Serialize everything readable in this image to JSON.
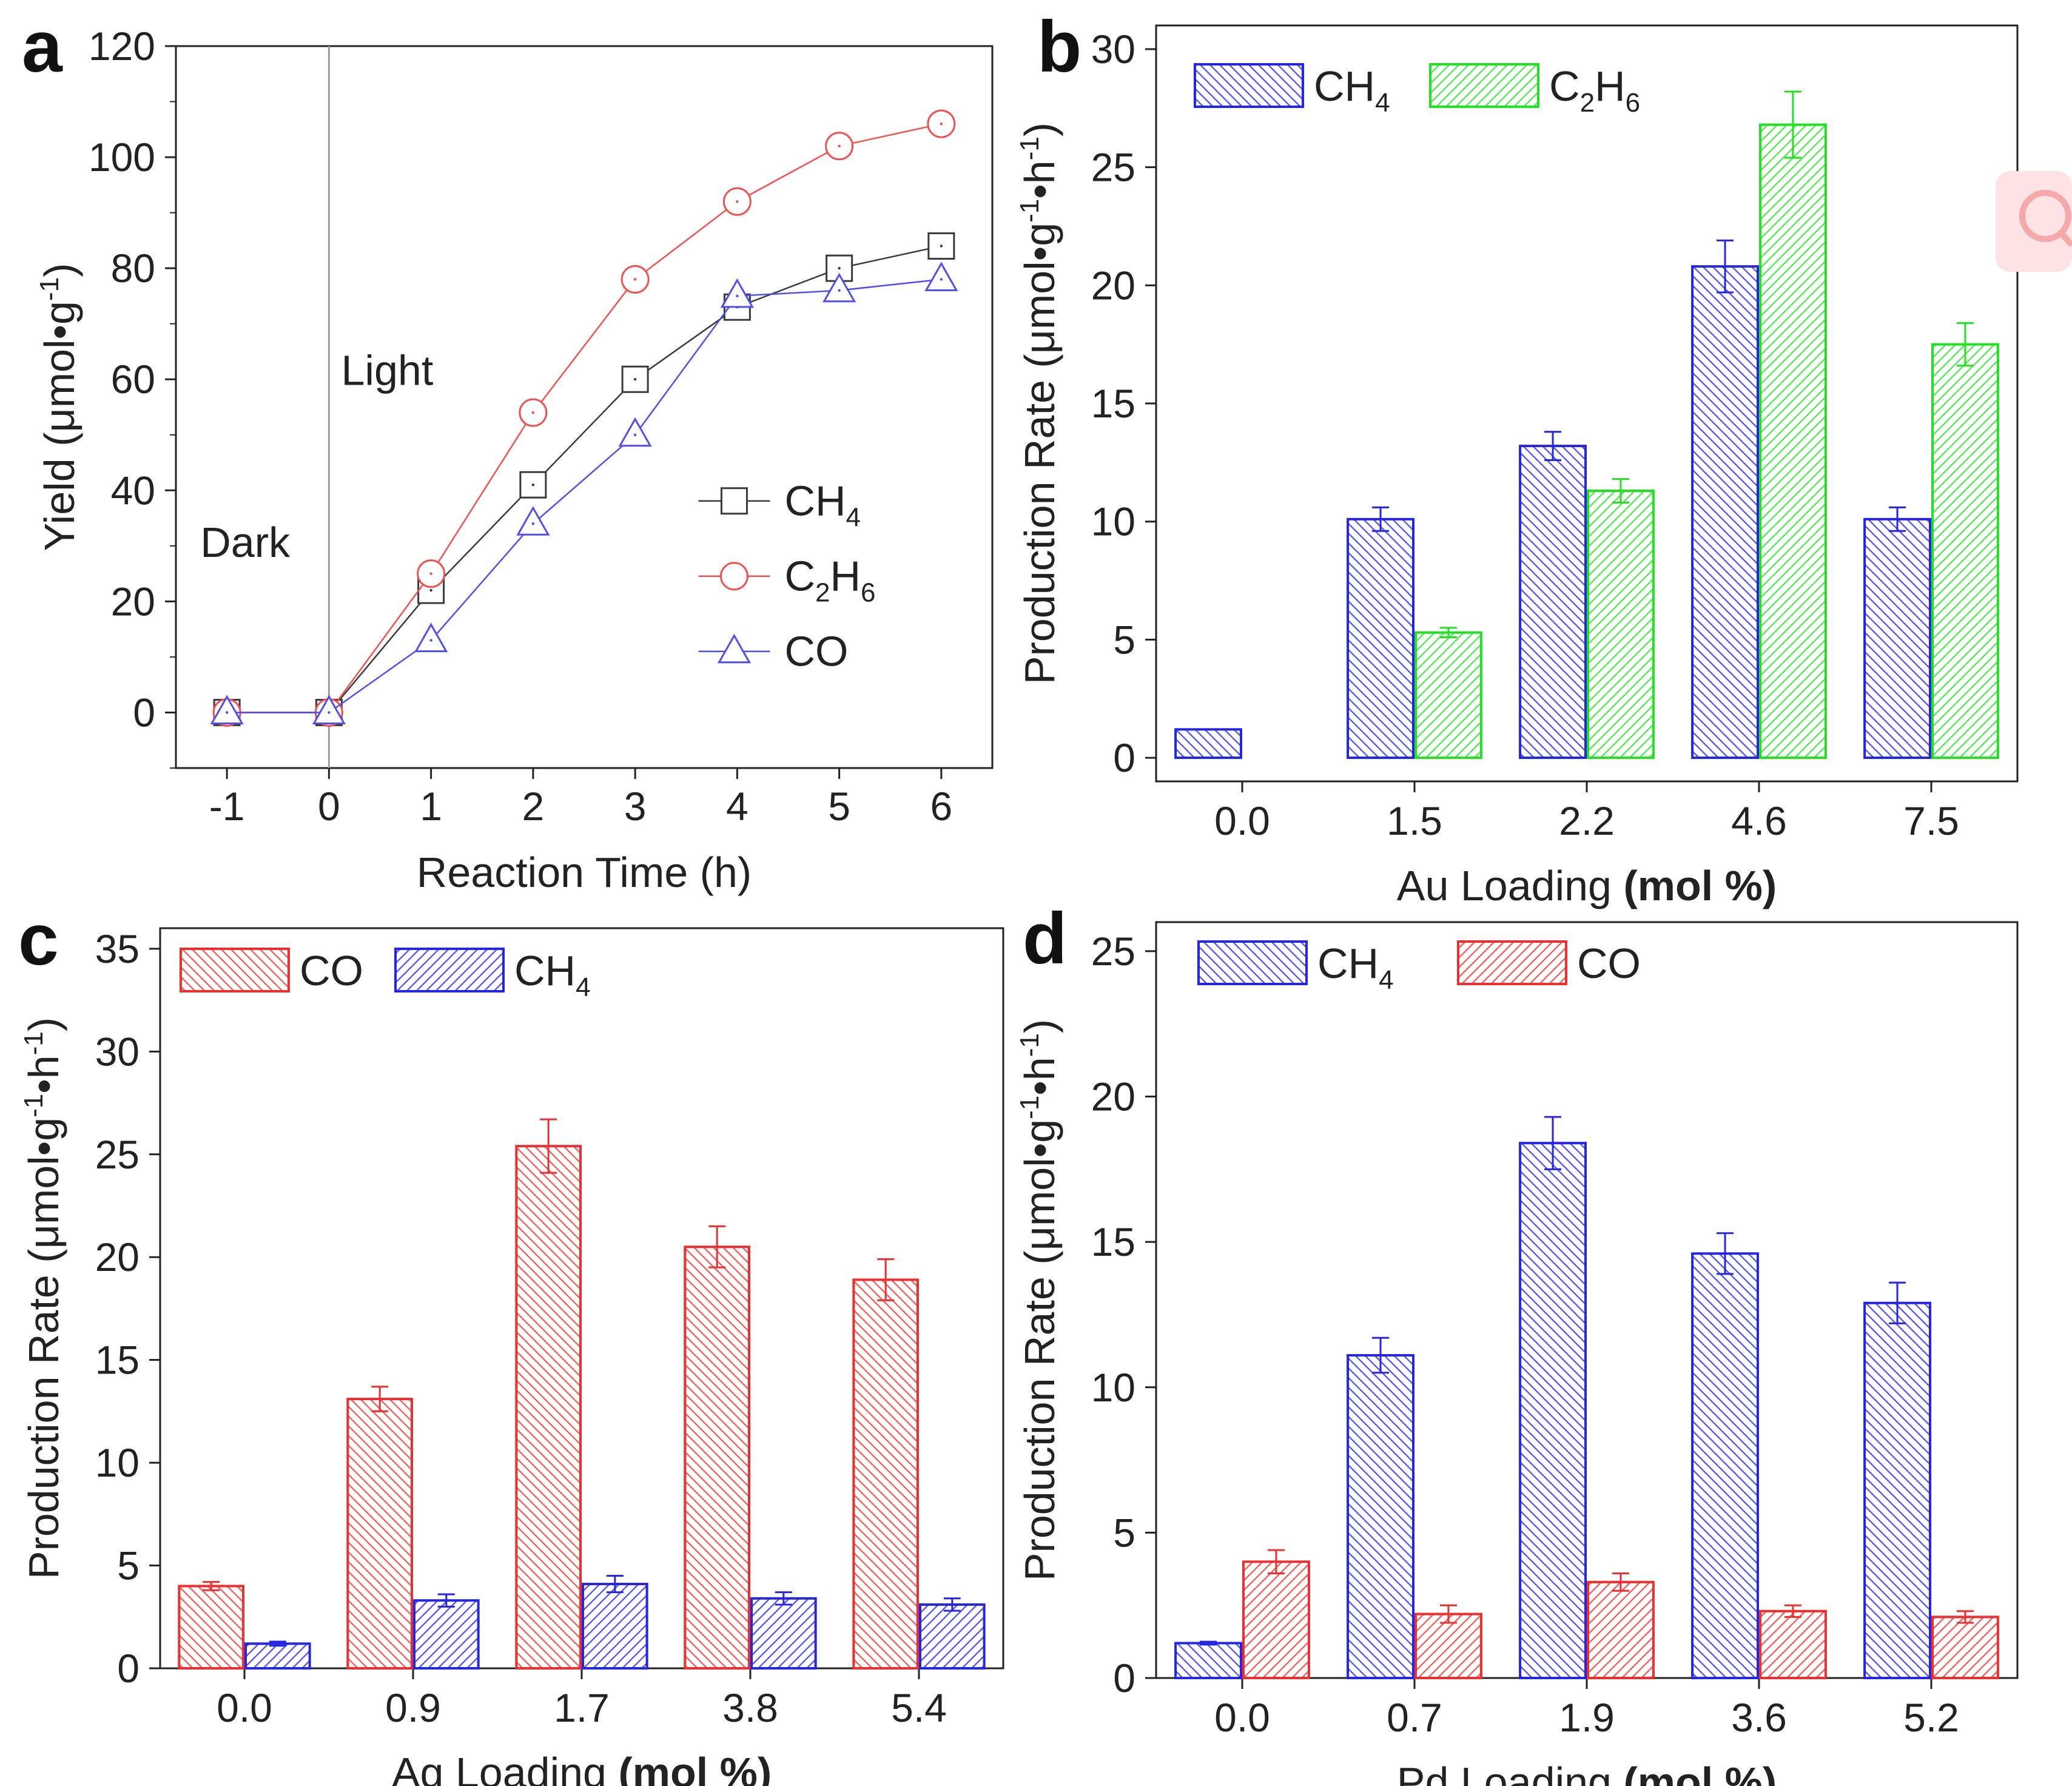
{
  "chart_data": [
    {
      "id": "a",
      "panel_label": "a",
      "type": "line",
      "xlabel": "Reaction Time (h)",
      "ylabel_main": "Yield (μmol•g",
      "ylabel_sup": "-1",
      "ylabel_end": ")",
      "x": [
        -1,
        0,
        1,
        2,
        3,
        4,
        5,
        6
      ],
      "xlim": [
        -1.5,
        6.5
      ],
      "ylim": [
        -10,
        120
      ],
      "xticks": [
        "-1",
        "0",
        "1",
        "2",
        "3",
        "4",
        "5",
        "6"
      ],
      "yticks": [
        "0",
        "20",
        "40",
        "60",
        "80",
        "100",
        "120"
      ],
      "series": [
        {
          "name": "CH",
          "sub": "4",
          "tail": "",
          "color": "#3a3a3a",
          "marker": "square",
          "values": [
            0,
            0,
            22,
            41,
            60,
            73,
            80,
            84
          ]
        },
        {
          "name": "C",
          "sub": "2",
          "tail": "H",
          "sub2": "6",
          "color": "#f25050",
          "marker": "circle",
          "values": [
            0,
            0,
            25,
            54,
            78,
            92,
            102,
            106
          ]
        },
        {
          "name": "CO",
          "sub": "",
          "tail": "",
          "color": "#4f4ff0",
          "marker": "triangle",
          "values": [
            0,
            0,
            13,
            34,
            50,
            75,
            76,
            78
          ]
        }
      ],
      "annotations": {
        "dark": "Dark",
        "light": "Light"
      }
    },
    {
      "id": "b",
      "panel_label": "b",
      "type": "bar",
      "xlabel_main": "Au Loading",
      "xlabel_bold": "(mol %)",
      "ylabel_main": "Production Rate (μmol•g",
      "ylabel_sup1": "-1",
      "ylabel_mid": "•h",
      "ylabel_sup2": "-1",
      "ylabel_end": ")",
      "categories": [
        "0.0",
        "1.5",
        "2.2",
        "4.6",
        "7.5"
      ],
      "ylim": [
        -1,
        31
      ],
      "yticks": [
        "0",
        "5",
        "10",
        "15",
        "20",
        "25",
        "30"
      ],
      "series": [
        {
          "name": "CH",
          "sub": "4",
          "color": "#2525e6",
          "hatch": "back",
          "values": [
            1.2,
            10.1,
            13.2,
            20.8,
            10.1
          ],
          "errors": [
            0,
            0.5,
            0.6,
            1.1,
            0.5
          ]
        },
        {
          "name": "C",
          "sub": "2",
          "tail": "H",
          "sub2": "6",
          "color": "#22e022",
          "hatch": "fwd",
          "values": [
            0,
            5.3,
            11.3,
            26.8,
            17.5
          ],
          "errors": [
            0,
            0.2,
            0.5,
            1.4,
            0.9
          ]
        }
      ]
    },
    {
      "id": "c",
      "panel_label": "c",
      "type": "bar",
      "xlabel_main": "Ag Loading",
      "xlabel_bold": "(mol %)",
      "ylabel_main": "Production Rate (μmol•g",
      "ylabel_sup1": "-1",
      "ylabel_mid": "•h",
      "ylabel_sup2": "-1",
      "ylabel_end": ")",
      "categories": [
        "0.0",
        "0.9",
        "1.7",
        "3.8",
        "5.4"
      ],
      "ylim": [
        0,
        36
      ],
      "yticks": [
        "0",
        "5",
        "10",
        "15",
        "20",
        "25",
        "30",
        "35"
      ],
      "series": [
        {
          "name": "CO",
          "sub": "",
          "color": "#ec2f2f",
          "hatch": "back",
          "values": [
            4.0,
            13.1,
            25.4,
            20.5,
            18.9
          ],
          "errors": [
            0.2,
            0.6,
            1.3,
            1.0,
            1.0
          ]
        },
        {
          "name": "CH",
          "sub": "4",
          "color": "#2525e6",
          "hatch": "fwd",
          "values": [
            1.2,
            3.3,
            4.1,
            3.4,
            3.1
          ],
          "errors": [
            0.1,
            0.3,
            0.4,
            0.3,
            0.3
          ]
        }
      ]
    },
    {
      "id": "d",
      "panel_label": "d",
      "type": "bar",
      "xlabel_main": "Pd Loading",
      "xlabel_bold": "(mol %)",
      "ylabel_main": "Production Rate (μmol•g",
      "ylabel_sup1": "-1",
      "ylabel_mid": "•h",
      "ylabel_sup2": "-1",
      "ylabel_end": ")",
      "categories": [
        "0.0",
        "0.7",
        "1.9",
        "3.6",
        "5.2"
      ],
      "ylim": [
        0,
        26
      ],
      "yticks": [
        "0",
        "5",
        "10",
        "15",
        "20",
        "25"
      ],
      "series": [
        {
          "name": "CH",
          "sub": "4",
          "color": "#2525e6",
          "hatch": "back",
          "values": [
            1.2,
            11.1,
            18.4,
            14.6,
            12.9
          ],
          "errors": [
            0.05,
            0.6,
            0.9,
            0.7,
            0.7
          ]
        },
        {
          "name": "CO",
          "sub": "",
          "color": "#ec2f2f",
          "hatch": "fwd",
          "values": [
            4.0,
            2.2,
            3.3,
            2.3,
            2.1
          ],
          "errors": [
            0.4,
            0.3,
            0.3,
            0.2,
            0.2
          ]
        }
      ]
    }
  ]
}
